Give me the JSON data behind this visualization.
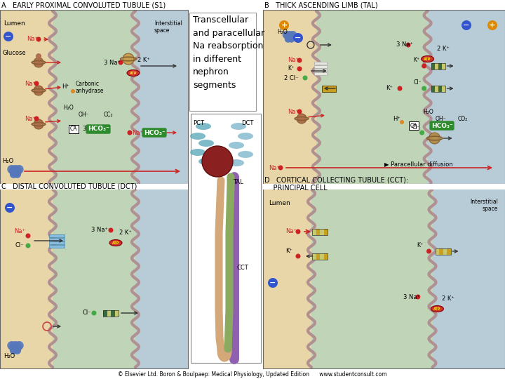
{
  "title": "Transcellular and paracellular Na reabsorption in different nephron segments",
  "panel_A_title": "A   EARLY PROXIMAL CONVOLUTED TUBULE (S1)",
  "panel_B_title": "B   THICK ASCENDING LIMB (TAL)",
  "panel_C_title": "C   DISTAL CONVOLUTED TUBULE (DCT)",
  "panel_D_title": "D   CORTICAL COLLECTING TUBULE (CCT):\n    PRINCIPAL CELL",
  "footer": "© Elsevier Ltd. Boron & Boulpaep: Medical Physiology, Updated Edition      www.studentconsult.com",
  "bg_tan": "#e8d5a8",
  "lumen_blue": "#b8ccd8",
  "cell_green": "#c0d4b8",
  "cell_blue": "#b8ccd8",
  "interstitial_tan": "#e8d5a8",
  "membrane_color": "#b09090",
  "red_dot": "#cc2222",
  "green_dot": "#44aa44",
  "orange_dot": "#dd8822",
  "blue_dot": "#4466bb",
  "neg_circle": "#3355cc",
  "pos_circle": "#dd8800",
  "hco3_green": "#2d8a2d",
  "atp_yellow": "#f0d040",
  "arrow_red": "#cc2222",
  "arrow_black": "#333333",
  "transporter_gold": "#c8a020",
  "transporter_dk_green": "#3a6a3a",
  "pump_red": "#cc3333",
  "water_blue": "#5577bb"
}
